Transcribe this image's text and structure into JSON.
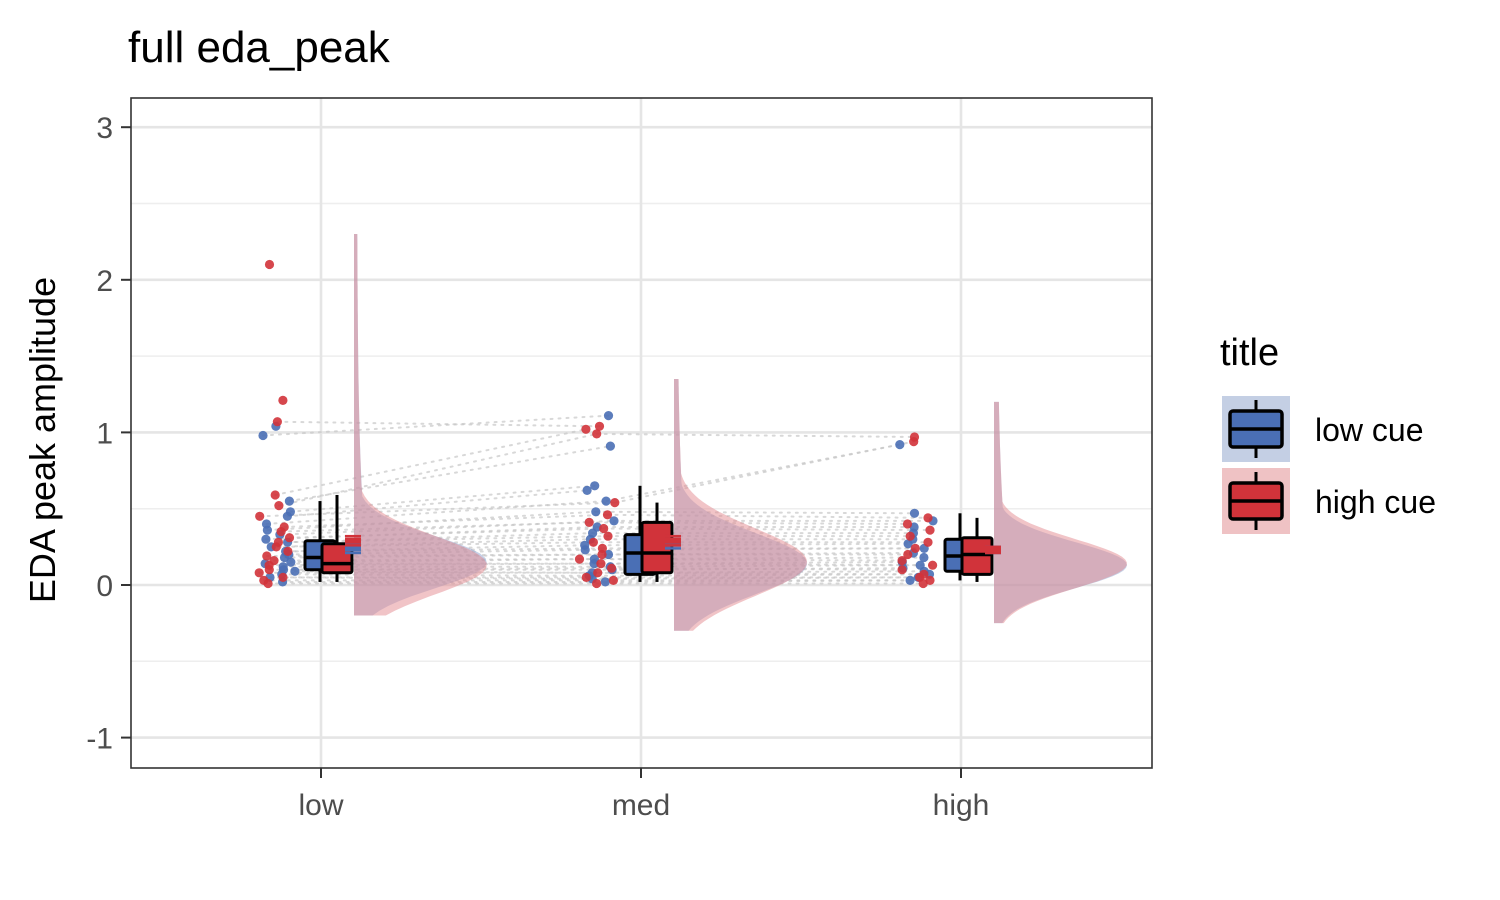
{
  "chart_data": {
    "type": "raincloud",
    "title": "full eda_peak",
    "xlabel": "",
    "ylabel": "EDA peak amplitude",
    "categories": [
      "low",
      "med",
      "high"
    ],
    "ylim": [
      -1.3,
      3.2
    ],
    "yticks": [
      -1,
      0,
      1,
      2,
      3
    ],
    "ytick_labels": [
      "-1",
      "0",
      "1",
      "2",
      "3"
    ],
    "grid": true,
    "legend": {
      "title": "title",
      "position": "right",
      "entries": [
        {
          "label": "low cue",
          "color": "#4a6fb5"
        },
        {
          "label": "high cue",
          "color": "#d1333a"
        }
      ]
    },
    "series": [
      {
        "name": "low cue",
        "color": "#4a6fb5",
        "box": [
          {
            "category": "low",
            "min": 0.02,
            "q1": 0.1,
            "median": 0.18,
            "q3": 0.29,
            "max": 0.55,
            "mean": 0.24,
            "se": 0.03
          },
          {
            "category": "med",
            "min": 0.02,
            "q1": 0.07,
            "median": 0.21,
            "q3": 0.33,
            "max": 0.65,
            "mean": 0.27,
            "se": 0.03
          },
          {
            "category": "high",
            "min": 0.03,
            "q1": 0.09,
            "median": 0.19,
            "q3": 0.3,
            "max": 0.47,
            "mean": 0.23,
            "se": 0.02
          }
        ],
        "points": {
          "low": [
            0.02,
            0.05,
            0.07,
            0.09,
            0.1,
            0.12,
            0.14,
            0.15,
            0.18,
            0.2,
            0.22,
            0.25,
            0.28,
            0.3,
            0.33,
            0.36,
            0.4,
            0.45,
            0.48,
            0.55,
            0.98,
            1.04
          ],
          "med": [
            0.02,
            0.04,
            0.06,
            0.08,
            0.1,
            0.12,
            0.14,
            0.17,
            0.2,
            0.23,
            0.26,
            0.3,
            0.34,
            0.38,
            0.42,
            0.48,
            0.55,
            0.62,
            0.65,
            0.91,
            1.11
          ],
          "high": [
            0.03,
            0.05,
            0.07,
            0.09,
            0.11,
            0.13,
            0.15,
            0.18,
            0.21,
            0.24,
            0.27,
            0.3,
            0.34,
            0.38,
            0.42,
            0.47,
            0.92
          ]
        }
      },
      {
        "name": "high cue",
        "color": "#d1333a",
        "box": [
          {
            "category": "low",
            "min": 0.02,
            "q1": 0.08,
            "median": 0.14,
            "q3": 0.27,
            "max": 0.59,
            "mean": 0.29,
            "se": 0.03
          },
          {
            "category": "med",
            "min": 0.02,
            "q1": 0.08,
            "median": 0.21,
            "q3": 0.41,
            "max": 0.54,
            "mean": 0.29,
            "se": 0.03
          },
          {
            "category": "high",
            "min": 0.02,
            "q1": 0.07,
            "median": 0.2,
            "q3": 0.31,
            "max": 0.44,
            "mean": 0.23,
            "se": 0.02
          }
        ],
        "points": {
          "low": [
            0.01,
            0.03,
            0.05,
            0.08,
            0.1,
            0.13,
            0.16,
            0.19,
            0.22,
            0.25,
            0.28,
            0.31,
            0.35,
            0.38,
            0.45,
            0.52,
            0.59,
            1.07,
            1.21,
            2.1
          ],
          "med": [
            0.01,
            0.03,
            0.05,
            0.08,
            0.11,
            0.14,
            0.17,
            0.2,
            0.24,
            0.28,
            0.32,
            0.37,
            0.41,
            0.46,
            0.54,
            0.99,
            1.02,
            1.04
          ],
          "high": [
            0.01,
            0.03,
            0.05,
            0.07,
            0.1,
            0.13,
            0.16,
            0.2,
            0.24,
            0.28,
            0.32,
            0.36,
            0.4,
            0.44,
            0.94,
            0.97
          ]
        }
      }
    ],
    "density": {
      "low": {
        "low_cue": {
          "mode": 0.15,
          "sd": 0.17,
          "range": [
            -0.2,
            2.3
          ]
        },
        "high_cue": {
          "mode": 0.13,
          "sd": 0.19,
          "range": [
            -0.2,
            2.3
          ]
        }
      },
      "med": {
        "low_cue": {
          "mode": 0.14,
          "sd": 0.2,
          "range": [
            -0.3,
            1.35
          ]
        },
        "high_cue": {
          "mode": 0.15,
          "sd": 0.22,
          "range": [
            -0.3,
            1.35
          ]
        }
      },
      "high": {
        "low_cue": {
          "mode": 0.13,
          "sd": 0.15,
          "range": [
            -0.25,
            1.2
          ]
        },
        "high_cue": {
          "mode": 0.14,
          "sd": 0.16,
          "range": [
            -0.25,
            1.2
          ]
        }
      }
    }
  }
}
